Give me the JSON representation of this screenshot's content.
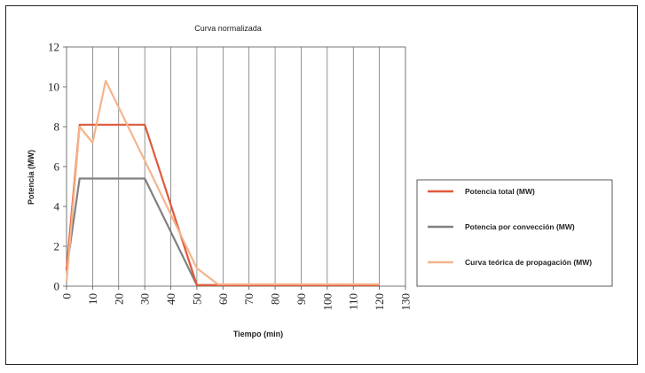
{
  "chart_data": {
    "type": "line",
    "title": "Curva normalizada",
    "xlabel": "Tiempo (min)",
    "ylabel": "Potencia (MW)",
    "xlim": [
      0,
      130
    ],
    "ylim": [
      0,
      12
    ],
    "xticks": [
      "0",
      "10",
      "20",
      "30",
      "40",
      "50",
      "60",
      "70",
      "80",
      "90",
      "100",
      "110",
      "120",
      "130"
    ],
    "yticks": [
      "0",
      "2",
      "4",
      "6",
      "8",
      "10",
      "12"
    ],
    "grid": "vertical",
    "legend_position": "right",
    "series": [
      {
        "name": "Potencia total (MW)",
        "color": "#e05a3a",
        "points": [
          [
            0,
            0.8
          ],
          [
            5,
            8.1
          ],
          [
            30,
            8.1
          ],
          [
            50,
            0.05
          ],
          [
            120,
            0.05
          ]
        ]
      },
      {
        "name": "Potencia por convección (MW)",
        "color": "#808080",
        "points": [
          [
            0,
            0.8
          ],
          [
            5,
            5.4
          ],
          [
            30,
            5.4
          ],
          [
            50,
            0.05
          ],
          [
            120,
            0.05
          ]
        ]
      },
      {
        "name": "Curva teórica de propagación (MW)",
        "color": "#f5b48c",
        "points": [
          [
            0,
            0.2
          ],
          [
            5,
            8.0
          ],
          [
            10,
            7.2
          ],
          [
            15,
            10.3
          ],
          [
            30,
            6.3
          ],
          [
            50,
            0.9
          ],
          [
            58,
            0.1
          ],
          [
            120,
            0.1
          ]
        ]
      }
    ]
  }
}
